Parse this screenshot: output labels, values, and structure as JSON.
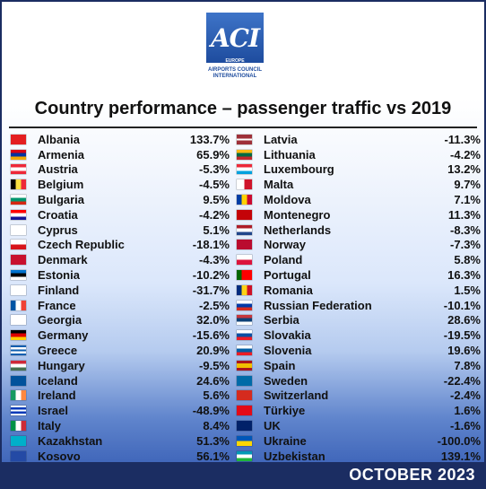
{
  "logo": {
    "mark": "ACI",
    "region": "EUROPE",
    "org_line1": "AIRPORTS COUNCIL",
    "org_line2": "INTERNATIONAL"
  },
  "title": "Country performance – passenger traffic vs 2019",
  "date": "OCTOBER 2023",
  "left": [
    {
      "country": "Albania",
      "value": "133.7%",
      "flag": "albania-flag",
      "colors": [
        "#e41e20"
      ],
      "dir": "h"
    },
    {
      "country": "Armenia",
      "value": "65.9%",
      "flag": "armenia-flag",
      "colors": [
        "#d90012",
        "#0033a0",
        "#f2a800"
      ],
      "dir": "h"
    },
    {
      "country": "Austria",
      "value": "-5.3%",
      "flag": "austria-flag",
      "colors": [
        "#ed2939",
        "#ffffff",
        "#ed2939"
      ],
      "dir": "h"
    },
    {
      "country": "Belgium",
      "value": "-4.5%",
      "flag": "belgium-flag",
      "colors": [
        "#000000",
        "#fae042",
        "#ed2939"
      ],
      "dir": "v"
    },
    {
      "country": "Bulgaria",
      "value": "9.5%",
      "flag": "bulgaria-flag",
      "colors": [
        "#ffffff",
        "#00966e",
        "#d62612"
      ],
      "dir": "h"
    },
    {
      "country": "Croatia",
      "value": "-4.2%",
      "flag": "croatia-flag",
      "colors": [
        "#ff0000",
        "#ffffff",
        "#171796"
      ],
      "dir": "h"
    },
    {
      "country": "Cyprus",
      "value": "5.1%",
      "flag": "cyprus-flag",
      "colors": [
        "#ffffff"
      ],
      "dir": "h"
    },
    {
      "country": "Czech Republic",
      "value": "-18.1%",
      "flag": "czech-flag",
      "colors": [
        "#ffffff",
        "#d7141a"
      ],
      "dir": "h"
    },
    {
      "country": "Denmark",
      "value": "-4.3%",
      "flag": "denmark-flag",
      "colors": [
        "#c8102e"
      ],
      "dir": "h"
    },
    {
      "country": "Estonia",
      "value": "-10.2%",
      "flag": "estonia-flag",
      "colors": [
        "#0072ce",
        "#000000",
        "#ffffff"
      ],
      "dir": "h"
    },
    {
      "country": "Finland",
      "value": "-31.7%",
      "flag": "finland-flag",
      "colors": [
        "#ffffff"
      ],
      "dir": "h"
    },
    {
      "country": "France",
      "value": "-2.5%",
      "flag": "france-flag",
      "colors": [
        "#0055a4",
        "#ffffff",
        "#ef4135"
      ],
      "dir": "v"
    },
    {
      "country": "Georgia",
      "value": "32.0%",
      "flag": "georgia-flag",
      "colors": [
        "#ffffff"
      ],
      "dir": "h"
    },
    {
      "country": "Germany",
      "value": "-15.6%",
      "flag": "germany-flag",
      "colors": [
        "#000000",
        "#dd0000",
        "#ffce00"
      ],
      "dir": "h"
    },
    {
      "country": "Greece",
      "value": "20.9%",
      "flag": "greece-flag",
      "colors": [
        "#0d5eaf",
        "#ffffff",
        "#0d5eaf",
        "#ffffff",
        "#0d5eaf"
      ],
      "dir": "h"
    },
    {
      "country": "Hungary",
      "value": "-9.5%",
      "flag": "hungary-flag",
      "colors": [
        "#ce2939",
        "#ffffff",
        "#477050"
      ],
      "dir": "h"
    },
    {
      "country": "Iceland",
      "value": "24.6%",
      "flag": "iceland-flag",
      "colors": [
        "#02529c"
      ],
      "dir": "h"
    },
    {
      "country": "Ireland",
      "value": "5.6%",
      "flag": "ireland-flag",
      "colors": [
        "#169b62",
        "#ffffff",
        "#ff883e"
      ],
      "dir": "v"
    },
    {
      "country": "Israel",
      "value": "-48.9%",
      "flag": "israel-flag",
      "colors": [
        "#ffffff",
        "#0038b8",
        "#ffffff",
        "#0038b8",
        "#ffffff"
      ],
      "dir": "h"
    },
    {
      "country": "Italy",
      "value": "8.4%",
      "flag": "italy-flag",
      "colors": [
        "#009246",
        "#ffffff",
        "#ce2b37"
      ],
      "dir": "v"
    },
    {
      "country": "Kazakhstan",
      "value": "51.3%",
      "flag": "kazakhstan-flag",
      "colors": [
        "#00afca"
      ],
      "dir": "h"
    },
    {
      "country": "Kosovo",
      "value": "56.1%",
      "flag": "kosovo-flag",
      "colors": [
        "#244aa5"
      ],
      "dir": "h"
    }
  ],
  "right": [
    {
      "country": "Latvia",
      "value": "-11.3%",
      "flag": "latvia-flag",
      "colors": [
        "#9e3039",
        "#9e3039",
        "#ffffff",
        "#9e3039",
        "#9e3039"
      ],
      "dir": "h"
    },
    {
      "country": "Lithuania",
      "value": "-4.2%",
      "flag": "lithuania-flag",
      "colors": [
        "#fdb913",
        "#006a44",
        "#c1272d"
      ],
      "dir": "h"
    },
    {
      "country": "Luxembourg",
      "value": "13.2%",
      "flag": "luxembourg-flag",
      "colors": [
        "#ed2939",
        "#ffffff",
        "#00a1de"
      ],
      "dir": "h"
    },
    {
      "country": "Malta",
      "value": "9.7%",
      "flag": "malta-flag",
      "colors": [
        "#ffffff",
        "#cf142b"
      ],
      "dir": "v"
    },
    {
      "country": "Moldova",
      "value": "7.1%",
      "flag": "moldova-flag",
      "colors": [
        "#003da5",
        "#ffd200",
        "#cc092f"
      ],
      "dir": "v"
    },
    {
      "country": "Montenegro",
      "value": "11.3%",
      "flag": "montenegro-flag",
      "colors": [
        "#c40308"
      ],
      "dir": "h"
    },
    {
      "country": "Netherlands",
      "value": "-8.3%",
      "flag": "netherlands-flag",
      "colors": [
        "#ae1c28",
        "#ffffff",
        "#21468b"
      ],
      "dir": "h"
    },
    {
      "country": "Norway",
      "value": "-7.3%",
      "flag": "norway-flag",
      "colors": [
        "#ba0c2f"
      ],
      "dir": "h"
    },
    {
      "country": "Poland",
      "value": "5.8%",
      "flag": "poland-flag",
      "colors": [
        "#ffffff",
        "#dc143c"
      ],
      "dir": "h"
    },
    {
      "country": "Portugal",
      "value": "16.3%",
      "flag": "portugal-flag",
      "colors": [
        "#006600",
        "#ff0000",
        "#ff0000"
      ],
      "dir": "v"
    },
    {
      "country": "Romania",
      "value": "1.5%",
      "flag": "romania-flag",
      "colors": [
        "#002b7f",
        "#fcd116",
        "#ce1126"
      ],
      "dir": "v"
    },
    {
      "country": "Russian Federation",
      "value": "-10.1%",
      "flag": "russia-flag",
      "colors": [
        "#ffffff",
        "#0039a6",
        "#d52b1e"
      ],
      "dir": "h"
    },
    {
      "country": "Serbia",
      "value": "28.6%",
      "flag": "serbia-flag",
      "colors": [
        "#c6363c",
        "#0c4076",
        "#ffffff"
      ],
      "dir": "h"
    },
    {
      "country": "Slovakia",
      "value": "-19.5%",
      "flag": "slovakia-flag",
      "colors": [
        "#ffffff",
        "#0b4ea2",
        "#ee1c25"
      ],
      "dir": "h"
    },
    {
      "country": "Slovenia",
      "value": "19.6%",
      "flag": "slovenia-flag",
      "colors": [
        "#ffffff",
        "#005da4",
        "#ed1c24"
      ],
      "dir": "h"
    },
    {
      "country": "Spain",
      "value": "7.8%",
      "flag": "spain-flag",
      "colors": [
        "#aa151b",
        "#f1bf00",
        "#f1bf00",
        "#aa151b"
      ],
      "dir": "h"
    },
    {
      "country": "Sweden",
      "value": "-22.4%",
      "flag": "sweden-flag",
      "colors": [
        "#006aa7"
      ],
      "dir": "h"
    },
    {
      "country": "Switzerland",
      "value": "-2.4%",
      "flag": "switzerland-flag",
      "colors": [
        "#d52b1e"
      ],
      "dir": "h"
    },
    {
      "country": "Türkiye",
      "value": "1.6%",
      "flag": "turkiye-flag",
      "colors": [
        "#e30a17"
      ],
      "dir": "h"
    },
    {
      "country": "UK",
      "value": "-1.6%",
      "flag": "uk-flag",
      "colors": [
        "#012169"
      ],
      "dir": "h"
    },
    {
      "country": "Ukraine",
      "value": "-100.0%",
      "flag": "ukraine-flag",
      "colors": [
        "#0057b7",
        "#ffd700"
      ],
      "dir": "h"
    },
    {
      "country": "Uzbekistan",
      "value": "139.1%",
      "flag": "uzbekistan-flag",
      "colors": [
        "#0099b5",
        "#ffffff",
        "#1eb53a"
      ],
      "dir": "h"
    }
  ]
}
